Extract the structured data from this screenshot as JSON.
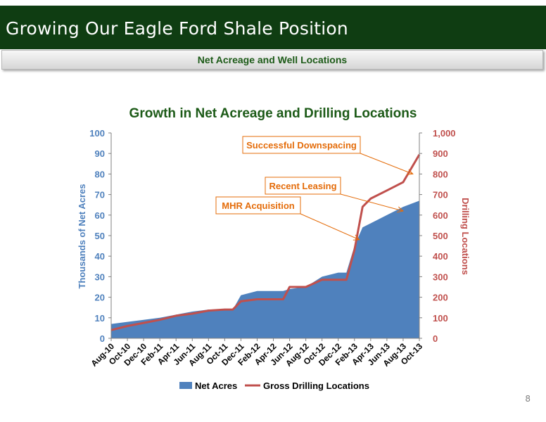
{
  "header": {
    "title": "Growing Our Eagle Ford Shale Position",
    "subtitle": "Net Acreage and Well Locations"
  },
  "page_number": "8",
  "colors": {
    "title_bar": "#0f3d12",
    "subtitle_text": "#1c5a17",
    "net_acres_fill": "#4f81bd",
    "drilling_line": "#c0504d",
    "annotation_border": "#e46c0a",
    "annotation_text": "#e46c0a"
  },
  "chart_data": {
    "type": "area",
    "title": "Growth in Net Acreage and Drilling Locations",
    "categories": [
      "Aug-10",
      "Oct-10",
      "Dec-10",
      "Feb-11",
      "Apr-11",
      "Jun-11",
      "Aug-11",
      "Oct-11",
      "Dec-11",
      "Feb-12",
      "Apr-12",
      "Jun-12",
      "Aug-12",
      "Oct-12",
      "Dec-12",
      "Feb-13",
      "Apr-13",
      "Jun-13",
      "Aug-13",
      "Oct-13"
    ],
    "ylabel": "Thousands of Net Acres",
    "ylabel_right": "Drilling Locations",
    "ylim": [
      0,
      100
    ],
    "ylim_right": [
      0,
      1000
    ],
    "yticks": [
      0,
      10,
      20,
      30,
      40,
      50,
      60,
      70,
      80,
      90,
      100
    ],
    "yticks_right": [
      "0",
      "100",
      "200",
      "300",
      "400",
      "500",
      "600",
      "700",
      "800",
      "900",
      "1,000"
    ],
    "grid": false,
    "legend_position": "bottom",
    "series": [
      {
        "name": "Net Acres",
        "kind": "area",
        "axis": "left",
        "points": [
          [
            0,
            7
          ],
          [
            1,
            8
          ],
          [
            2,
            9
          ],
          [
            3,
            10
          ],
          [
            4,
            11.5
          ],
          [
            5,
            13
          ],
          [
            6,
            14
          ],
          [
            7,
            14
          ],
          [
            7.5,
            14
          ],
          [
            8,
            21
          ],
          [
            9,
            23
          ],
          [
            10,
            23
          ],
          [
            10.6,
            23
          ],
          [
            11,
            24
          ],
          [
            12,
            25
          ],
          [
            13,
            30
          ],
          [
            14,
            32
          ],
          [
            14.5,
            32
          ],
          [
            15,
            45
          ],
          [
            15.5,
            54
          ],
          [
            16,
            56
          ],
          [
            17,
            60
          ],
          [
            18,
            64
          ],
          [
            19,
            67
          ]
        ]
      },
      {
        "name": "Gross Drilling Locations",
        "kind": "line",
        "axis": "right",
        "points": [
          [
            0,
            40
          ],
          [
            1,
            60
          ],
          [
            2,
            75
          ],
          [
            3,
            90
          ],
          [
            4,
            110
          ],
          [
            5,
            120
          ],
          [
            6,
            135
          ],
          [
            7,
            140
          ],
          [
            7.5,
            140
          ],
          [
            8,
            180
          ],
          [
            9,
            190
          ],
          [
            10,
            190
          ],
          [
            10.6,
            190
          ],
          [
            11,
            250
          ],
          [
            12,
            250
          ],
          [
            13,
            285
          ],
          [
            14,
            285
          ],
          [
            14.5,
            285
          ],
          [
            15,
            430
          ],
          [
            15.5,
            640
          ],
          [
            16,
            680
          ],
          [
            17,
            720
          ],
          [
            18,
            760
          ],
          [
            19,
            895
          ]
        ]
      }
    ],
    "annotations": [
      {
        "text": "Successful Downspacing",
        "target": [
          18.6,
          800
        ]
      },
      {
        "text": "Recent Leasing",
        "target": [
          18.0,
          620
        ]
      },
      {
        "text": "MHR Acquisition",
        "target": [
          15.3,
          480
        ]
      }
    ]
  }
}
